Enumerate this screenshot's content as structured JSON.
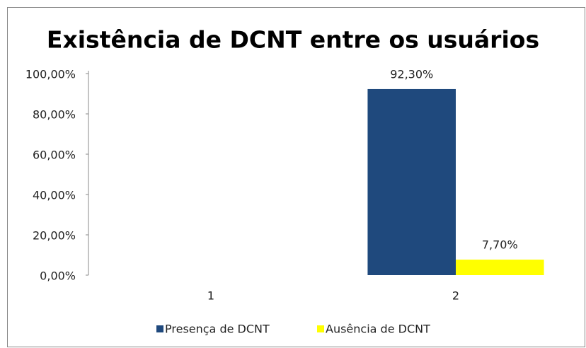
{
  "chart_data": {
    "type": "bar",
    "title": "Existência de DCNT entre os usuários",
    "categories": [
      "1",
      "2"
    ],
    "series": [
      {
        "name": "Presença de DCNT",
        "color": "#1f497d",
        "values": [
          null,
          92.3
        ],
        "value_labels": [
          null,
          "92,30%"
        ]
      },
      {
        "name": "Ausência de DCNT",
        "color": "#ffff00",
        "values": [
          null,
          7.7
        ],
        "value_labels": [
          null,
          "7,70%"
        ]
      }
    ],
    "ylim": [
      0,
      100
    ],
    "yticks": [
      {
        "value": 0,
        "label": "0,00%"
      },
      {
        "value": 20,
        "label": "20,00%"
      },
      {
        "value": 40,
        "label": "40,00%"
      },
      {
        "value": 60,
        "label": "60,00%"
      },
      {
        "value": 80,
        "label": "80,00%"
      },
      {
        "value": 100,
        "label": "100,00%"
      }
    ],
    "legend": "bottom",
    "grid": false
  }
}
